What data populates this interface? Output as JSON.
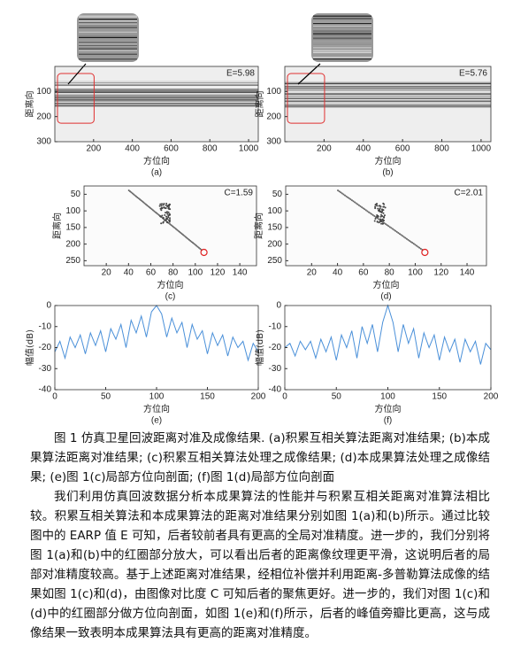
{
  "chart_data": [
    {
      "type": "image",
      "label": "(a)",
      "annotation": "E=5.98",
      "xlabel": "方位向",
      "ylabel": "距离向",
      "xlim": [
        0,
        1050
      ],
      "xticks": [
        200,
        400,
        600,
        800,
        1000
      ],
      "ylim": [
        0,
        300
      ],
      "yticks": [
        100,
        200,
        300
      ],
      "y_inverted": true
    },
    {
      "type": "image",
      "label": "(b)",
      "annotation": "E=5.76",
      "xlabel": "方位向",
      "ylabel": "距离向",
      "xlim": [
        0,
        1050
      ],
      "xticks": [
        200,
        400,
        600,
        800,
        1000
      ],
      "ylim": [
        0,
        300
      ],
      "yticks": [
        100,
        200,
        300
      ],
      "y_inverted": true
    },
    {
      "type": "scene",
      "label": "(c)",
      "annotation": "C=1.59",
      "xlabel": "方位向",
      "ylabel": "距离向",
      "xlim": [
        0,
        155
      ],
      "xticks": [
        20,
        40,
        60,
        80,
        100,
        120,
        140
      ],
      "ylim": [
        25,
        265
      ],
      "yticks": [
        50,
        100,
        150,
        200,
        250
      ],
      "y_inverted": true
    },
    {
      "type": "scene",
      "label": "(d)",
      "annotation": "C=2.01",
      "xlabel": "方位向",
      "ylabel": "距离向",
      "xlim": [
        0,
        155
      ],
      "xticks": [
        20,
        40,
        60,
        80,
        100,
        120,
        140
      ],
      "ylim": [
        25,
        265
      ],
      "yticks": [
        50,
        100,
        150,
        200,
        250
      ],
      "y_inverted": true
    },
    {
      "type": "line",
      "label": "(e)",
      "xlabel": "方位向",
      "ylabel": "幅值(dB)",
      "color": "#4a90d9",
      "xlim": [
        0,
        200
      ],
      "xticks": [
        0,
        50,
        100,
        150,
        200
      ],
      "ylim": [
        -40,
        0
      ],
      "yticks": [
        -40,
        -30,
        -20,
        -10,
        0
      ],
      "x": [
        0,
        5,
        10,
        15,
        20,
        25,
        30,
        35,
        40,
        45,
        50,
        55,
        60,
        65,
        70,
        75,
        80,
        85,
        90,
        95,
        100,
        105,
        110,
        115,
        120,
        125,
        130,
        135,
        140,
        145,
        150,
        155,
        160,
        165,
        170,
        175,
        180,
        185,
        190,
        195,
        200
      ],
      "values": [
        -22,
        -17,
        -25,
        -15,
        -20,
        -14,
        -23,
        -13,
        -19,
        -12,
        -22,
        -11,
        -16,
        -9,
        -20,
        -7,
        -13,
        -5,
        -15,
        -3,
        0,
        -4,
        -15,
        -6,
        -13,
        -8,
        -20,
        -9,
        -16,
        -12,
        -23,
        -13,
        -19,
        -14,
        -24,
        -15,
        -20,
        -17,
        -26,
        -18,
        -22
      ]
    },
    {
      "type": "line",
      "label": "(f)",
      "xlabel": "方位向",
      "ylabel": "幅值(dB)",
      "color": "#4a90d9",
      "xlim": [
        0,
        200
      ],
      "xticks": [
        0,
        50,
        100,
        150,
        200
      ],
      "ylim": [
        -40,
        0
      ],
      "yticks": [
        -40,
        -30,
        -20,
        -10,
        0
      ],
      "x": [
        0,
        5,
        10,
        15,
        20,
        25,
        30,
        35,
        40,
        45,
        50,
        55,
        60,
        65,
        70,
        75,
        80,
        85,
        90,
        95,
        100,
        105,
        110,
        115,
        120,
        125,
        130,
        135,
        140,
        145,
        150,
        155,
        160,
        165,
        170,
        175,
        180,
        185,
        190,
        195,
        200
      ],
      "values": [
        -20,
        -18,
        -24,
        -17,
        -21,
        -17,
        -25,
        -16,
        -22,
        -15,
        -26,
        -14,
        -20,
        -12,
        -25,
        -10,
        -18,
        -9,
        -22,
        -8,
        0,
        -8,
        -22,
        -9,
        -18,
        -11,
        -25,
        -13,
        -20,
        -14,
        -26,
        -15,
        -22,
        -16,
        -27,
        -16,
        -22,
        -17,
        -28,
        -18,
        -21
      ]
    }
  ],
  "caption": "图 1 仿真卫星回波距离对准及成像结果. (a)积累互相关算法距离对准结果; (b)本成果算法距离对准结果; (c)积累互相关算法处理之成像结果; (d)本成果算法处理之成像结果; (e)图 1(c)局部方位向剖面; (f)图 1(d)局部方位向剖面",
  "paragraph": "我们利用仿真回波数据分析本成果算法的性能并与积累互相关距离对准算法相比较。积累互相关算法和本成果算法的距离对准结果分别如图 1(a)和(b)所示。通过比较图中的 EARP 值 E 可知，后者较前者具有更高的全局对准精度。进一步的，我们分别将图 1(a)和(b)中的红圈部分放大，可以看出后者的距离像纹理更平滑，这说明后者的局部对准精度较高。基于上述距离对准结果，经相位补偿并利用距离-多普勒算法成像的结果如图 1(c)和(d)，由图像对比度 C 可知后者的聚焦更好。进一步的，我们对图 1(c)和(d)中的红圈部分做方位向剖面，如图 1(e)和(f)所示，后者的峰值旁瓣比更高，这与成像结果一致表明本成果算法具有更高的距离对准精度。"
}
